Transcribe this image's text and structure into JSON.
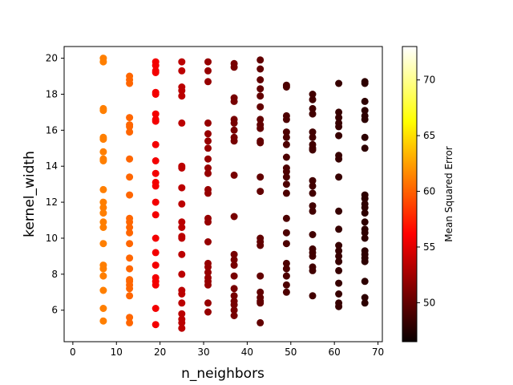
{
  "chart_data": {
    "type": "scatter",
    "title": "",
    "xlabel": "n_neighbors",
    "ylabel": "kernel_width",
    "xlim": [
      -2,
      71
    ],
    "ylim": [
      4.25,
      20.65
    ],
    "x_ticks": [
      0,
      10,
      20,
      30,
      40,
      50,
      60,
      70
    ],
    "y_ticks": [
      6,
      8,
      10,
      12,
      14,
      16,
      18,
      20
    ],
    "grid": false,
    "legend": "none",
    "colormap": "hot",
    "colorbar": {
      "label": "Mean Squared Error",
      "range": [
        46.5,
        73
      ],
      "ticks": [
        50,
        55,
        60,
        65,
        70
      ]
    },
    "columns": [
      {
        "x": 7,
        "mse": 61.2,
        "y": [
          20.0,
          19.8,
          17.2,
          17.1,
          15.6,
          15.5,
          14.8,
          14.4,
          14.3,
          12.7,
          12.0,
          11.7,
          11.4,
          10.9,
          10.6,
          9.7,
          8.5,
          8.3,
          7.9,
          7.1,
          6.1,
          5.4
        ]
      },
      {
        "x": 13,
        "mse": 60.2,
        "y": [
          19.0,
          18.8,
          18.6,
          16.7,
          16.3,
          16.2,
          15.9,
          14.4,
          13.4,
          12.4,
          11.1,
          10.9,
          10.6,
          10.3,
          9.7,
          8.9,
          8.3,
          7.7,
          7.6,
          7.4,
          7.2,
          6.8,
          5.6,
          5.3
        ]
      },
      {
        "x": 19,
        "mse": 55.3,
        "y": [
          19.8,
          19.6,
          19.3,
          19.2,
          18.1,
          18.0,
          16.9,
          16.6,
          16.5,
          15.2,
          14.3,
          13.6,
          13.1,
          12.9,
          12.0,
          11.3,
          10.0,
          9.2,
          8.5,
          7.8,
          7.6,
          7.4,
          6.1,
          5.2
        ]
      },
      {
        "x": 25,
        "mse": 53.2,
        "y": [
          19.8,
          19.3,
          18.4,
          18.2,
          17.9,
          16.4,
          14.0,
          13.9,
          12.8,
          11.9,
          10.9,
          10.6,
          10.1,
          10.0,
          9.1,
          8.0,
          7.1,
          6.9,
          6.4,
          5.8,
          5.5,
          5.3,
          5.0
        ]
      },
      {
        "x": 31,
        "mse": 51.8,
        "y": [
          19.8,
          19.3,
          18.7,
          16.4,
          15.8,
          15.4,
          15.0,
          14.4,
          13.9,
          13.6,
          12.7,
          12.5,
          11.1,
          10.9,
          9.8,
          8.6,
          8.4,
          8.1,
          7.8,
          7.6,
          7.4,
          6.4,
          5.9
        ]
      },
      {
        "x": 37,
        "mse": 50.6,
        "y": [
          19.7,
          19.5,
          17.8,
          17.6,
          16.6,
          16.4,
          16.0,
          15.6,
          15.4,
          13.5,
          11.2,
          9.1,
          8.8,
          8.5,
          7.9,
          7.2,
          6.8,
          6.5,
          6.3,
          6.0,
          5.7
        ]
      },
      {
        "x": 43,
        "mse": 49.8,
        "y": [
          19.9,
          19.4,
          18.8,
          18.3,
          17.9,
          17.3,
          16.6,
          16.3,
          16.1,
          15.4,
          15.3,
          13.4,
          12.6,
          10.0,
          9.8,
          9.6,
          7.9,
          7.0,
          6.7,
          6.5,
          6.4,
          5.3
        ]
      },
      {
        "x": 49,
        "mse": 49.0,
        "y": [
          18.5,
          18.4,
          16.8,
          16.6,
          15.9,
          15.6,
          15.2,
          14.5,
          13.9,
          13.7,
          13.4,
          13.0,
          12.5,
          11.1,
          10.3,
          9.7,
          8.6,
          8.3,
          7.9,
          7.4,
          7.0
        ]
      },
      {
        "x": 55,
        "mse": 48.6,
        "y": [
          18.0,
          17.7,
          17.2,
          16.9,
          15.9,
          15.6,
          15.2,
          15.0,
          14.9,
          13.2,
          12.9,
          12.5,
          11.8,
          11.5,
          10.2,
          9.4,
          9.2,
          9.0,
          8.4,
          8.2,
          6.8
        ]
      },
      {
        "x": 61,
        "mse": 48.2,
        "y": [
          18.6,
          17.0,
          16.7,
          16.4,
          16.2,
          15.7,
          14.6,
          14.4,
          13.4,
          11.5,
          10.5,
          9.6,
          9.3,
          9.0,
          8.7,
          8.2,
          7.5,
          6.9,
          6.4,
          6.2
        ]
      },
      {
        "x": 67,
        "mse": 47.8,
        "y": [
          18.7,
          18.6,
          17.6,
          17.1,
          16.8,
          16.6,
          15.6,
          15.0,
          12.4,
          12.2,
          11.9,
          11.7,
          11.4,
          10.9,
          10.5,
          10.3,
          10.0,
          9.3,
          9.1,
          8.9,
          8.7,
          7.6,
          6.7,
          6.4
        ]
      }
    ]
  }
}
